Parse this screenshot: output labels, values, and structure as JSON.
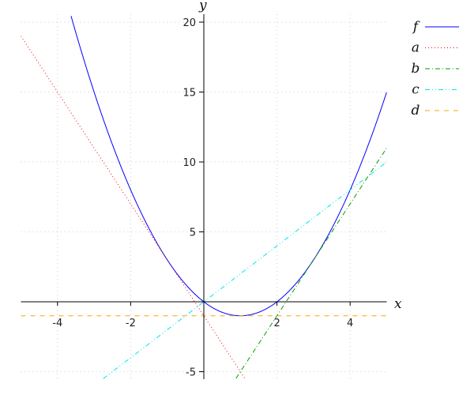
{
  "chart_data": {
    "type": "line",
    "xlabel": "x",
    "ylabel": "y",
    "xlim": [
      -5,
      5
    ],
    "ylim": [
      -5.5,
      20.5
    ],
    "xticks": [
      "-4",
      "-2",
      "2",
      "4"
    ],
    "yticks": [
      "-5",
      "5",
      "10",
      "15",
      "20"
    ],
    "grid": true,
    "legend_placement": "right",
    "series": [
      {
        "name": "f",
        "expr": "x^2 - 2x",
        "coef": [
          1,
          -2,
          0
        ],
        "color": "#0000ff",
        "dash": "solid"
      },
      {
        "name": "a",
        "expr": "-4x - 1",
        "coef": [
          0,
          -4,
          -1
        ],
        "color": "#ff0000",
        "dash": "dotted"
      },
      {
        "name": "b",
        "expr": "4x - 9",
        "coef": [
          0,
          4,
          -9
        ],
        "color": "#00a000",
        "dash": "dashdot"
      },
      {
        "name": "c",
        "expr": "2x",
        "coef": [
          0,
          2,
          0
        ],
        "color": "#00e5ee",
        "dash": "dashdotdot"
      },
      {
        "name": "d",
        "expr": "-1",
        "coef": [
          0,
          0,
          -1
        ],
        "color": "#ffa500",
        "dash": "dashed"
      }
    ]
  }
}
